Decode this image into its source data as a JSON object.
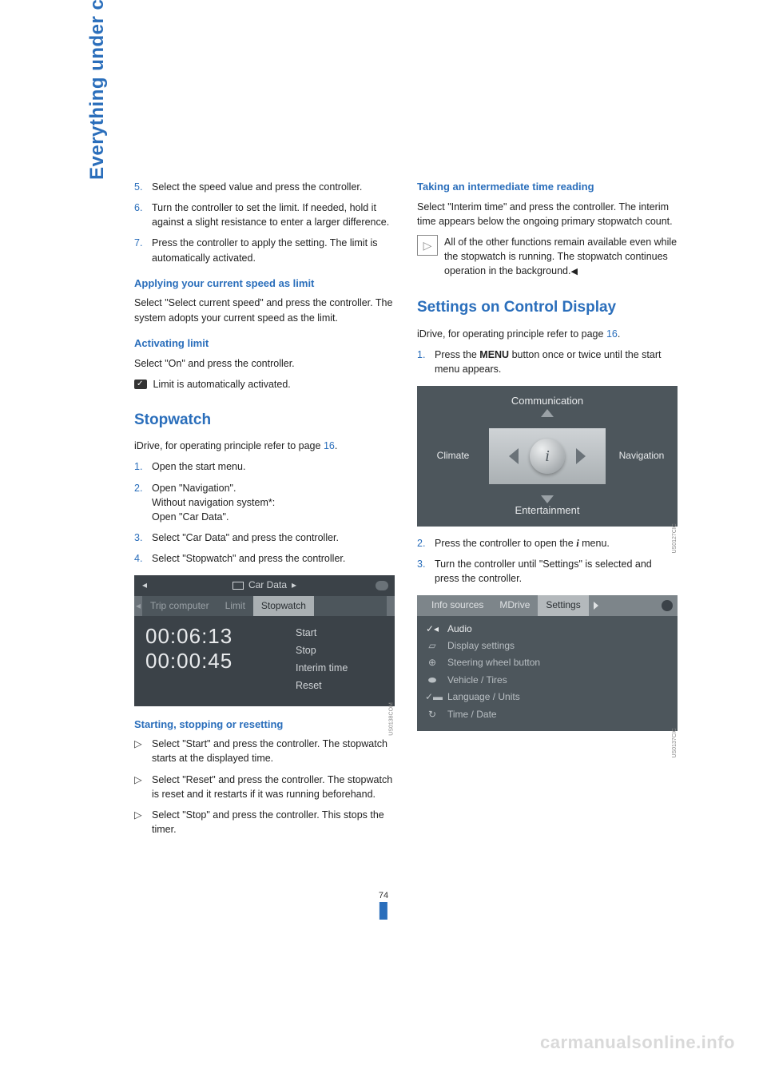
{
  "sideTab": "Everything under control",
  "pageNumber": "74",
  "watermark": "carmanualsonline.info",
  "colors": {
    "accent": "#2a6ebb",
    "bodyText": "#222222",
    "screenshotBg": "#4d565c",
    "screenshotBgDark": "#3b4248",
    "screenshotText": "#cfd3d6",
    "tabSelBg": "#aab0b3",
    "tabSelText": "#2a2f33"
  },
  "left": {
    "cont1": [
      {
        "n": "5.",
        "t": "Select the speed value and press the controller."
      },
      {
        "n": "6.",
        "t": "Turn the controller to set the limit. If needed, hold it against a slight resistance to enter a larger difference."
      },
      {
        "n": "7.",
        "t": "Press the controller to apply the setting. The limit is automatically activated."
      }
    ],
    "h_applying": "Applying your current speed as limit",
    "p_applying": "Select \"Select current speed\" and press the controller. The system adopts your current speed as the limit.",
    "h_activating": "Activating limit",
    "p_activating1": "Select \"On\" and press the controller.",
    "p_activating2": " Limit is automatically activated.",
    "h_stopwatch": "Stopwatch",
    "p_idrive": "iDrive, for operating principle refer to page ",
    "p_idrive_link": "16",
    "p_idrive_end": ".",
    "stopList": [
      {
        "n": "1.",
        "t": "Open the start menu."
      },
      {
        "n": "2.",
        "t": "Open \"Navigation\".\nWithout navigation system*:\nOpen \"Car Data\"."
      },
      {
        "n": "3.",
        "t": "Select \"Car Data\" and press the controller."
      },
      {
        "n": "4.",
        "t": "Select \"Stopwatch\" and press the controller."
      }
    ],
    "shot1": {
      "bar1_arrow": "◂",
      "bar1_title": "Car Data",
      "bar1_title_arrow": "▸",
      "tabs": {
        "edgeL": "◂",
        "t1": "Trip computer",
        "t2": "Limit",
        "t3": "Stopwatch"
      },
      "time1": "00:06:13",
      "time2": "00:00:45",
      "menu": [
        "Start",
        "Stop",
        "Interim time",
        "Reset"
      ],
      "code": "US0138COM"
    },
    "h_ssr": "Starting, stopping or resetting",
    "ssrList": [
      "Select \"Start\" and press the controller. The stopwatch starts at the displayed time.",
      "Select \"Reset\" and press the controller. The stopwatch is reset and it restarts if it was running beforehand.",
      "Select \"Stop\" and press the controller. This stops the timer."
    ]
  },
  "right": {
    "h_interim": "Taking an intermediate time reading",
    "p_interim": "Select \"Interim time\" and press the controller. The interim time appears below the ongoing primary stopwatch count.",
    "note": "All of the other functions remain available even while the stopwatch is running. The stopwatch continues operation in the background.",
    "h_settings": "Settings on Control Display",
    "p_idrive": "iDrive, for operating principle refer to page ",
    "p_idrive_link": "16",
    "p_idrive_end": ".",
    "step1a": "Press the ",
    "step1b": "MENU",
    "step1c": " button once or twice until the start menu appears.",
    "shot2": {
      "top": "Communication",
      "left": "Climate",
      "right": "Navigation",
      "bottom": "Entertainment",
      "code": "US0127CIC"
    },
    "step2a": "Press the controller to open the ",
    "step2b": " menu.",
    "step3": "Turn the controller until \"Settings\" is selected and press the controller.",
    "shot3": {
      "tabs": {
        "t1": "Info sources",
        "t2": "MDrive",
        "t3": "Settings"
      },
      "items": [
        {
          "icon": "✓◂",
          "label": "Audio"
        },
        {
          "icon": "▱",
          "label": "Display settings"
        },
        {
          "icon": "⊕",
          "label": "Steering wheel button"
        },
        {
          "icon": "⬬",
          "label": "Vehicle / Tires"
        },
        {
          "icon": "✓▬",
          "label": "Language / Units"
        },
        {
          "icon": "↻",
          "label": "Time / Date"
        }
      ],
      "code": "US0137CIC"
    }
  }
}
